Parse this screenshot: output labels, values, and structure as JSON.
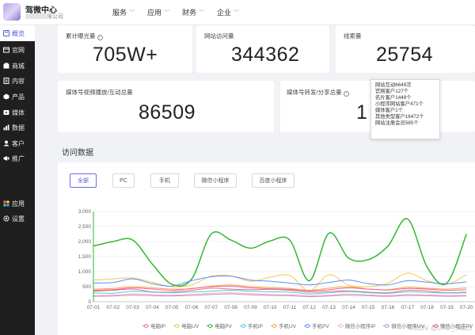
{
  "header": {
    "brand_title": "驾微中心",
    "brand_subtitle": "限公司",
    "nav": [
      {
        "label": "服务"
      },
      {
        "label": "应用"
      },
      {
        "label": "财务"
      },
      {
        "label": "企业"
      }
    ]
  },
  "sidebar": {
    "items": [
      {
        "label": "概览",
        "icon": "dashboard-icon"
      },
      {
        "label": "官网",
        "icon": "website-icon"
      },
      {
        "label": "商城",
        "icon": "store-icon"
      },
      {
        "label": "内容",
        "icon": "content-icon"
      },
      {
        "label": "产品",
        "icon": "product-icon"
      },
      {
        "label": "媒体",
        "icon": "media-icon"
      },
      {
        "label": "数据",
        "icon": "data-icon"
      },
      {
        "label": "客户",
        "icon": "customer-icon"
      },
      {
        "label": "推广",
        "icon": "promotion-icon"
      },
      {
        "label": "应用",
        "icon": "apps-icon"
      },
      {
        "label": "设置",
        "icon": "settings-icon"
      }
    ]
  },
  "stats": {
    "exposure": {
      "label": "累计曝光量",
      "value": "705W+"
    },
    "visits": {
      "label": "网站访问量",
      "value": "344362"
    },
    "leads": {
      "label": "线索量",
      "value": "25754"
    },
    "media_plays": {
      "label": "媒体号视频播放/互动总量",
      "value": "86509"
    },
    "media_shares": {
      "label": "媒体号转发/分享总量",
      "value": "1"
    }
  },
  "tooltip": {
    "lines": [
      "网站互动6649次",
      "官网客户127个",
      "名片客户1449个",
      "小程序网站客户471个",
      "媒体客户1个",
      "其他类型客户16472个",
      "网站注册会员585个"
    ]
  },
  "visits_section": {
    "title": "访问数据",
    "filters": [
      "全部",
      "PC",
      "手机",
      "微信小程序",
      "百度小程序"
    ],
    "active_filter": "全部"
  },
  "chart_data": {
    "type": "line",
    "x": [
      "07-01",
      "07-02",
      "07-03",
      "07-04",
      "07-05",
      "07-06",
      "07-07",
      "07-08",
      "07-09",
      "07-10",
      "07-11",
      "07-12",
      "07-13",
      "07-14",
      "07-15",
      "07-16",
      "07-17",
      "07-18",
      "07-19",
      "07-20"
    ],
    "ylim": [
      0,
      3000
    ],
    "yticks": [
      "3,000",
      "2,500",
      "2,000",
      "1,500",
      "1,000",
      "500",
      "0"
    ],
    "grid": true,
    "legend_position": "bottom",
    "series": [
      {
        "name": "电脑IP",
        "color": "#e57373",
        "values": [
          350,
          380,
          420,
          330,
          320,
          380,
          450,
          420,
          400,
          410,
          380,
          320,
          340,
          360,
          320,
          300,
          380,
          360,
          300,
          320
        ]
      },
      {
        "name": "电脑UV",
        "color": "#f2c94c",
        "values": [
          720,
          760,
          790,
          650,
          500,
          560,
          850,
          860,
          680,
          820,
          870,
          360,
          900,
          550,
          500,
          620,
          950,
          700,
          580,
          900
        ]
      },
      {
        "name": "电脑PV",
        "color": "#2eb82e",
        "values": [
          1850,
          2000,
          2050,
          1250,
          580,
          750,
          2250,
          2050,
          1780,
          2020,
          2050,
          700,
          2280,
          1450,
          1400,
          1850,
          2750,
          1150,
          620,
          2250
        ]
      },
      {
        "name": "手机IP",
        "color": "#4fc3f7",
        "values": [
          300,
          280,
          350,
          320,
          300,
          330,
          350,
          380,
          350,
          330,
          320,
          260,
          300,
          340,
          300,
          280,
          330,
          310,
          290,
          300
        ]
      },
      {
        "name": "手机UV",
        "color": "#f5a24a",
        "values": [
          420,
          440,
          500,
          460,
          420,
          430,
          520,
          560,
          500,
          470,
          440,
          380,
          450,
          500,
          420,
          400,
          480,
          450,
          420,
          460
        ]
      },
      {
        "name": "手机PV",
        "color": "#5b8ff9",
        "values": [
          620,
          640,
          760,
          600,
          520,
          700,
          830,
          850,
          720,
          680,
          620,
          560,
          640,
          720,
          600,
          560,
          700,
          650,
          600,
          660
        ]
      },
      {
        "name": "微信小程序IP",
        "color": "#f4b6a3",
        "values": [
          200,
          220,
          260,
          240,
          220,
          250,
          280,
          300,
          270,
          240,
          230,
          200,
          220,
          260,
          230,
          210,
          240,
          230,
          210,
          220
        ]
      },
      {
        "name": "微信小程序UV",
        "color": "#c08bd8",
        "values": [
          180,
          190,
          220,
          200,
          190,
          210,
          240,
          260,
          230,
          210,
          200,
          170,
          190,
          220,
          200,
          180,
          210,
          200,
          180,
          190
        ]
      },
      {
        "name": "微信小程序PV",
        "color": "#f06292",
        "values": [
          380,
          400,
          460,
          420,
          380,
          440,
          500,
          520,
          460,
          430,
          410,
          360,
          400,
          460,
          420,
          390,
          440,
          420,
          380,
          400
        ]
      }
    ]
  },
  "watermark": "CSDN @LTD_SaaS"
}
